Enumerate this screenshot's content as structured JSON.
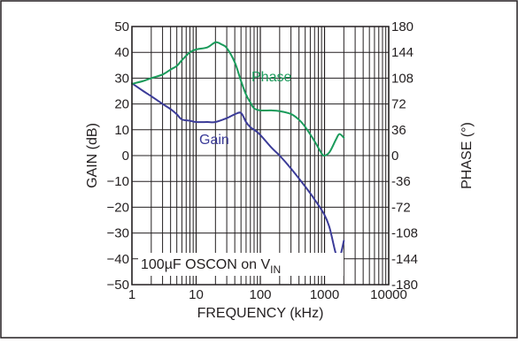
{
  "chart_data": {
    "type": "line",
    "xlabel": "FREQUENCY (kHz)",
    "ylabel_left": "GAIN (dB)",
    "ylabel_right": "PHASE (°)",
    "x_scale": "log",
    "xlim": [
      1,
      10000
    ],
    "ylim_left": [
      -50,
      50
    ],
    "ylim_right": [
      -180,
      180
    ],
    "grid": true,
    "x_ticks": [
      {
        "value": 1,
        "label": "1"
      },
      {
        "value": 10,
        "label": "10"
      },
      {
        "value": 100,
        "label": "100"
      },
      {
        "value": 1000,
        "label": "1000"
      },
      {
        "value": 10000,
        "label": "10000"
      }
    ],
    "y_ticks_left": [
      {
        "value": 50,
        "label": "50"
      },
      {
        "value": 40,
        "label": "40"
      },
      {
        "value": 30,
        "label": "30"
      },
      {
        "value": 20,
        "label": "20"
      },
      {
        "value": 10,
        "label": "10"
      },
      {
        "value": 0,
        "label": "0"
      },
      {
        "value": -10,
        "label": "−10"
      },
      {
        "value": -20,
        "label": "−20"
      },
      {
        "value": -30,
        "label": "−30"
      },
      {
        "value": -40,
        "label": "−40"
      },
      {
        "value": -50,
        "label": "−50"
      }
    ],
    "y_ticks_right": [
      {
        "value": 180,
        "label": "180"
      },
      {
        "value": 144,
        "label": "144"
      },
      {
        "value": 108,
        "label": "108"
      },
      {
        "value": 72,
        "label": "72"
      },
      {
        "value": 36,
        "label": "36"
      },
      {
        "value": 0,
        "label": "0"
      },
      {
        "value": -36,
        "label": "-36"
      },
      {
        "value": -72,
        "label": "-72"
      },
      {
        "value": -108,
        "label": "-108"
      },
      {
        "value": -144,
        "label": "-144"
      },
      {
        "value": -180,
        "label": "-180"
      }
    ],
    "series": [
      {
        "name": "Gain",
        "axis": "left",
        "color": "#3b3b98",
        "x": [
          1,
          1.5,
          2,
          3,
          4,
          5,
          6,
          8,
          10,
          15,
          20,
          30,
          40,
          50,
          60,
          70,
          80,
          100,
          150,
          200,
          300,
          500,
          700,
          1000,
          1200,
          1500,
          1700,
          2000
        ],
        "y": [
          28,
          25,
          23,
          20,
          18,
          16,
          14,
          13.5,
          13,
          13,
          13,
          14.5,
          16,
          16.5,
          13,
          11,
          10,
          8,
          3,
          0,
          -5,
          -12,
          -17,
          -23,
          -28,
          -38,
          -40,
          -33
        ]
      },
      {
        "name": "Phase",
        "axis": "right",
        "color": "#1a9b5b",
        "x": [
          1,
          1.5,
          2,
          3,
          4,
          5,
          6,
          8,
          10,
          15,
          20,
          25,
          30,
          40,
          50,
          60,
          70,
          80,
          100,
          150,
          200,
          300,
          400,
          500,
          700,
          900,
          1000,
          1200,
          1500,
          1700,
          2000
        ],
        "y": [
          100,
          104,
          108,
          113,
          120,
          125,
          133,
          144,
          148,
          151,
          158,
          155,
          150,
          130,
          104,
          85,
          74,
          66,
          63,
          63,
          62,
          58,
          50,
          40,
          20,
          3,
          0,
          5,
          22,
          30,
          25
        ]
      }
    ],
    "annotations": {
      "phase_label": "Phase",
      "gain_label": "Gain",
      "condition_prefix": "100µF OSCON on V",
      "condition_subscript": "IN"
    }
  }
}
